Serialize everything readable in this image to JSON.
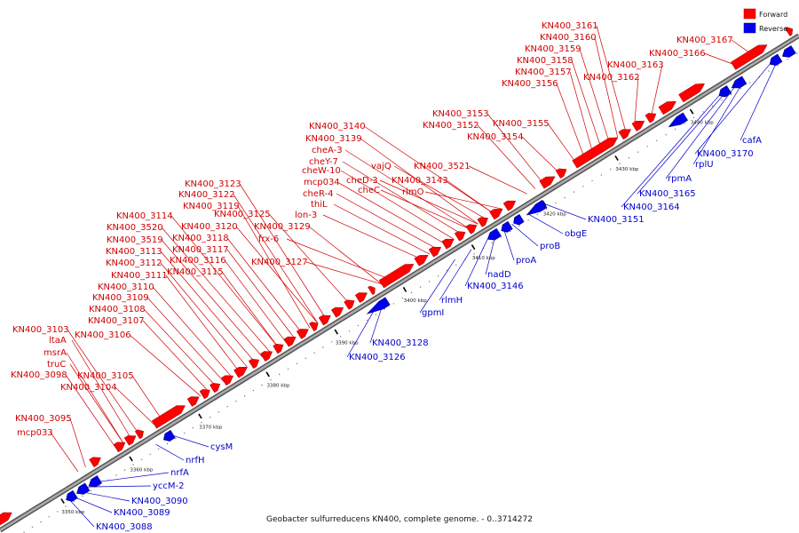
{
  "legend": {
    "forward_label": "Forward",
    "reverse_label": "Reverse"
  },
  "colors": {
    "forward": "#ff0000",
    "reverse": "#0000ee",
    "backbone": "#808080"
  },
  "caption": "Geobacter sulfurreducens KN400, complete genome. - 0..3714272",
  "ticks": [
    "3350 kbp",
    "3360 kbp",
    "3370 kbp",
    "3380 kbp",
    "3390 kbp",
    "3400 kbp",
    "3410 kbp",
    "3420 kbp",
    "3430 kbp",
    "3440 kbp"
  ],
  "forward_labels": [
    "KN400_3161",
    "KN400_3160",
    "KN400_3159",
    "KN400_3158",
    "KN400_3157",
    "KN400_3156",
    "KN400_3163",
    "KN400_3162",
    "KN400_3167",
    "KN400_3166",
    "KN400_3153",
    "KN400_3152",
    "KN400_3155",
    "KN400_3154",
    "KN400_3521",
    "KN400_3140",
    "KN400_3139",
    "cheA-3",
    "cheY-7",
    "cheW-10",
    "mcp034",
    "cheR-4",
    "thiL",
    "lon-3",
    "vajQ",
    "cheD-3",
    "cheC",
    "KN400_3143",
    "rimO",
    "KN400_3123",
    "KN400_3122",
    "KN400_3119",
    "KN400_3125",
    "KN400_3114",
    "KN400_3120",
    "KN400_3129",
    "KN400_3520",
    "KN400_3118",
    "frx-6",
    "KN400_3519",
    "KN400_3117",
    "KN400_3113",
    "KN400_3116",
    "KN400_3127",
    "KN400_3112",
    "KN400_3115",
    "KN400_3111",
    "KN400_3110",
    "KN400_3109",
    "KN400_3108",
    "KN400_3107",
    "KN400_3106",
    "KN400_3103",
    "ltaA",
    "msrA",
    "truC",
    "KN400_3105",
    "KN400_3098",
    "KN400_3104",
    "KN400_3095",
    "mcp033"
  ],
  "reverse_labels": [
    "cafA",
    "KN400_3170",
    "rplU",
    "rpmA",
    "KN400_3165",
    "KN400_3164",
    "KN400_3151",
    "obgE",
    "proB",
    "proA",
    "nadD",
    "KN400_3146",
    "rlmH",
    "gpmI",
    "KN400_3128",
    "KN400_3126",
    "cysM",
    "nrfH",
    "nrfA",
    "yccM-2",
    "KN400_3090",
    "KN400_3089",
    "KN400_3088"
  ]
}
